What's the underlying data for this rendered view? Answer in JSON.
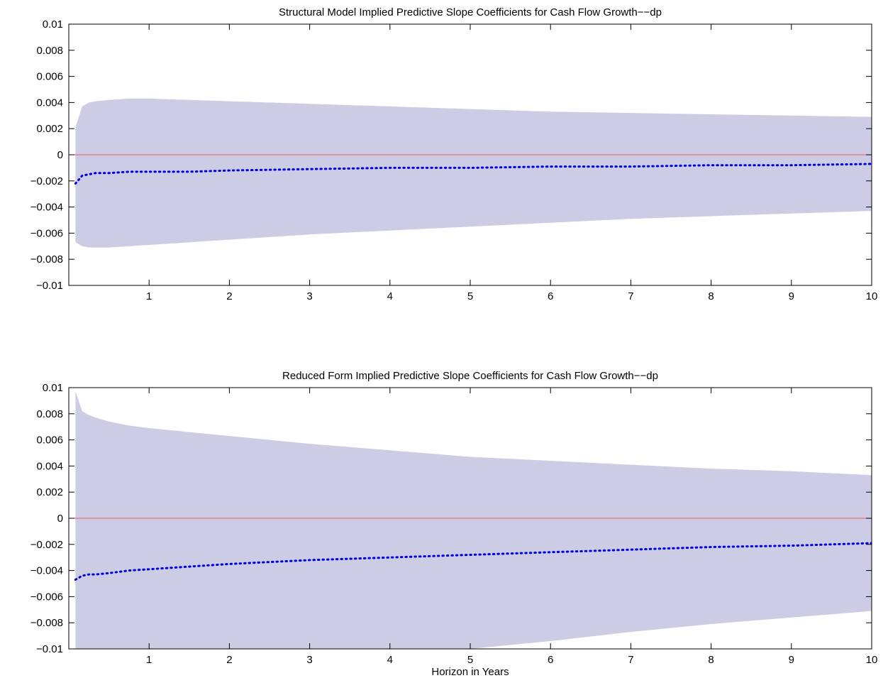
{
  "chart_data": [
    {
      "type": "area",
      "title": "Structural Model Implied Predictive Slope Coefficients for Cash Flow Growth−−dp",
      "xlabel": "",
      "ylabel": "",
      "xlim": [
        0,
        10
      ],
      "ylim": [
        -0.01,
        0.01
      ],
      "x_ticks": [
        1,
        2,
        3,
        4,
        5,
        6,
        7,
        8,
        9,
        10
      ],
      "y_ticks": [
        -0.01,
        -0.008,
        -0.006,
        -0.004,
        -0.002,
        0,
        0.002,
        0.004,
        0.006,
        0.008,
        0.01
      ],
      "y_tick_labels": [
        "−0.01",
        "−0.008",
        "−0.006",
        "−0.004",
        "−0.002",
        "0",
        "0.002",
        "0.004",
        "0.006",
        "0.008",
        "0.01"
      ],
      "grid": false,
      "reference_line": 0,
      "x": [
        0.083,
        0.167,
        0.25,
        0.333,
        0.5,
        0.75,
        1,
        1.5,
        2,
        3,
        4,
        5,
        6,
        7,
        8,
        9,
        10
      ],
      "series": [
        {
          "role": "band_upper",
          "values": [
            0.0021,
            0.0037,
            0.004,
            0.0041,
            0.0042,
            0.0043,
            0.0043,
            0.0042,
            0.0041,
            0.0039,
            0.0037,
            0.0035,
            0.0033,
            0.0032,
            0.0031,
            0.003,
            0.0029
          ]
        },
        {
          "role": "band_lower",
          "values": [
            -0.0067,
            -0.007,
            -0.0071,
            -0.0071,
            -0.0071,
            -0.007,
            -0.0069,
            -0.0067,
            -0.0065,
            -0.0061,
            -0.0058,
            -0.0055,
            -0.0052,
            -0.0049,
            -0.0047,
            -0.0045,
            -0.0043
          ]
        },
        {
          "role": "estimate",
          "values": [
            -0.0022,
            -0.0016,
            -0.0015,
            -0.0014,
            -0.0014,
            -0.0013,
            -0.0013,
            -0.0013,
            -0.0012,
            -0.0011,
            -0.001,
            -0.001,
            -0.0009,
            -0.0009,
            -0.0008,
            -0.0008,
            -0.0007
          ]
        }
      ]
    },
    {
      "type": "area",
      "title": "Reduced Form Implied Predictive Slope Coefficients for Cash Flow Growth−−dp",
      "xlabel": "Horizon in Years",
      "ylabel": "",
      "xlim": [
        0,
        10
      ],
      "ylim": [
        -0.01,
        0.01
      ],
      "x_ticks": [
        1,
        2,
        3,
        4,
        5,
        6,
        7,
        8,
        9,
        10
      ],
      "y_ticks": [
        -0.01,
        -0.008,
        -0.006,
        -0.004,
        -0.002,
        0,
        0.002,
        0.004,
        0.006,
        0.008,
        0.01
      ],
      "y_tick_labels": [
        "−0.01",
        "−0.008",
        "−0.006",
        "−0.004",
        "−0.002",
        "0",
        "0.002",
        "0.004",
        "0.006",
        "0.008",
        "0.01"
      ],
      "grid": false,
      "reference_line": 0,
      "x": [
        0.083,
        0.167,
        0.25,
        0.333,
        0.5,
        0.75,
        1,
        1.5,
        2,
        3,
        4,
        5,
        6,
        7,
        8,
        9,
        10
      ],
      "series": [
        {
          "role": "band_upper",
          "values": [
            0.0097,
            0.0082,
            0.0079,
            0.0077,
            0.0074,
            0.0071,
            0.0069,
            0.0066,
            0.0063,
            0.0057,
            0.0052,
            0.0047,
            0.0044,
            0.0041,
            0.0038,
            0.0036,
            0.0033
          ]
        },
        {
          "role": "band_lower",
          "values": [
            -0.0102,
            -0.0104,
            -0.0106,
            -0.0108,
            -0.0108,
            -0.0108,
            -0.0108,
            -0.0107,
            -0.0106,
            -0.0104,
            -0.0102,
            -0.01,
            -0.0094,
            -0.0087,
            -0.0081,
            -0.0076,
            -0.0071
          ]
        },
        {
          "role": "estimate",
          "values": [
            -0.0047,
            -0.0044,
            -0.0043,
            -0.0043,
            -0.0042,
            -0.004,
            -0.0039,
            -0.0037,
            -0.0035,
            -0.0032,
            -0.003,
            -0.0028,
            -0.0026,
            -0.0024,
            -0.0022,
            -0.0021,
            -0.0019
          ]
        }
      ]
    }
  ],
  "colors": {
    "band_fill": "#ccccE5",
    "estimate_line": "#0000E0",
    "reference_line": "#E06060",
    "axis": "#000000"
  }
}
